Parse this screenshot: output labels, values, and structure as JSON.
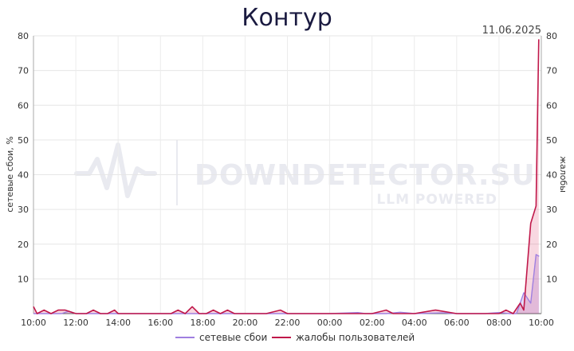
{
  "chart_data": {
    "type": "line",
    "title": "Контур",
    "date": "11.06.2025",
    "ylabel_left": "сетевые сбои, %",
    "ylabel_right": "жалобы",
    "ylim": [
      0,
      80
    ],
    "yticks_left": [
      "10",
      "20",
      "30",
      "40",
      "50",
      "60",
      "70",
      "80"
    ],
    "yticks_right": [
      "10",
      "20",
      "30",
      "40",
      "50",
      "60",
      "70",
      "80"
    ],
    "xlim_hours": [
      0,
      24
    ],
    "xticks": [
      "10:00",
      "12:00",
      "14:00",
      "16:00",
      "18:00",
      "20:00",
      "22:00",
      "00:00",
      "02:00",
      "04:00",
      "06:00",
      "08:00",
      "10:00"
    ],
    "grid": true,
    "legend_position": "bottom",
    "watermark": {
      "main": "DOWNDETECTOR.SU",
      "sub": "LLM POWERED"
    },
    "series": [
      {
        "name": "сетевые сбои",
        "color": "#9f7fe0",
        "x": [
          0,
          0.33,
          0.67,
          1,
          1.33,
          1.67,
          2,
          2.33,
          2.67,
          3,
          3.33,
          3.67,
          4,
          6,
          8,
          10,
          12,
          14,
          15.33,
          15.67,
          16,
          16.67,
          17.33,
          18,
          19.33,
          20,
          20.67,
          21.33,
          22,
          22.5,
          22.83,
          23.17,
          23.5,
          23.75,
          23.9
        ],
        "y": [
          0,
          0,
          0,
          0,
          0,
          0.7,
          0,
          0,
          0,
          0,
          0,
          0,
          0,
          0,
          0,
          0,
          0,
          0,
          0.3,
          0,
          0,
          0,
          0.4,
          0,
          0.2,
          0,
          0,
          0,
          0.3,
          0,
          0,
          6,
          3,
          17,
          16.5
        ]
      },
      {
        "name": "жалобы пользователей",
        "color": "#c0184a",
        "x": [
          0,
          0.17,
          0.5,
          0.83,
          1.17,
          1.5,
          2,
          2.5,
          2.83,
          3.17,
          3.5,
          3.83,
          4,
          5,
          6,
          6.5,
          6.83,
          7.17,
          7.5,
          7.83,
          8.17,
          8.5,
          8.83,
          9.17,
          9.5,
          10,
          11,
          11.67,
          12,
          12.5,
          13,
          14,
          15,
          16,
          16.67,
          17,
          17.33,
          18,
          19,
          20,
          21,
          22,
          22.33,
          22.67,
          23,
          23.17,
          23.5,
          23.75,
          23.88
        ],
        "y": [
          2,
          0,
          1,
          0,
          1,
          1,
          0,
          0,
          1,
          0,
          0,
          1,
          0,
          0,
          0,
          0,
          1,
          0,
          2,
          0,
          0,
          1,
          0,
          1,
          0,
          0,
          0,
          1,
          0,
          0,
          0,
          0,
          0,
          0,
          1,
          0,
          0,
          0,
          1,
          0,
          0,
          0,
          1,
          0,
          3,
          1,
          26,
          31,
          79
        ]
      }
    ]
  }
}
